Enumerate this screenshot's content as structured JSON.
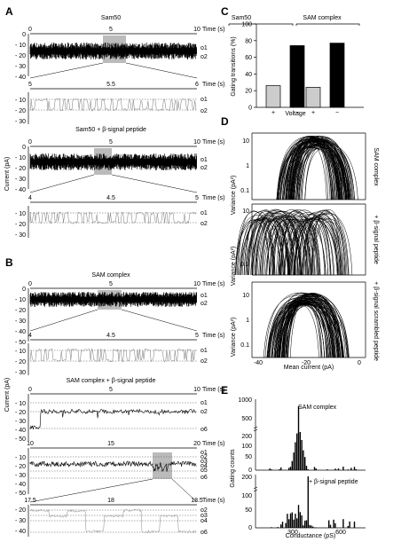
{
  "panels": {
    "A": "A",
    "B": "B",
    "C": "C",
    "D": "D",
    "E": "E"
  },
  "common": {
    "time_label": "Time (s)",
    "current_label": "Current (pA)",
    "states": {
      "o1": "o1",
      "o2": "o2",
      "o6": "o6",
      "o5": "o5",
      "o4": "o4",
      "o3": "o3"
    }
  },
  "panel_A": {
    "trace1": {
      "title": "Sam50",
      "x_ticks": [
        "0",
        "5",
        "10"
      ],
      "y_ticks": [
        "0",
        "- 10",
        "- 20",
        "- 30",
        "- 40"
      ]
    },
    "zoom1": {
      "x_ticks": [
        "5",
        "5.5",
        "6"
      ],
      "y_ticks": [
        "- 10",
        "- 20",
        "- 30"
      ]
    },
    "trace2": {
      "title": "Sam50 + β-signal peptide",
      "x_ticks": [
        "0",
        "5",
        "10"
      ],
      "y_ticks": [
        "0",
        "- 10",
        "- 20",
        "- 30",
        "- 40"
      ]
    },
    "zoom2": {
      "x_ticks": [
        "4",
        "4.5",
        "5"
      ],
      "y_ticks": [
        "- 10",
        "- 20",
        "- 30"
      ]
    }
  },
  "panel_B": {
    "trace1": {
      "title": "SAM complex",
      "x_ticks": [
        "0",
        "5",
        "10"
      ],
      "y_ticks": [
        "0",
        "- 10",
        "- 20",
        "- 30",
        "- 40",
        "- 50"
      ]
    },
    "zoom1": {
      "x_ticks": [
        "4",
        "4.5",
        "5"
      ],
      "y_ticks": [
        "- 10",
        "- 20",
        "- 30"
      ]
    },
    "trace2": {
      "title": "SAM complex + β-signal peptide",
      "x_ticks": [
        "0",
        "5",
        "10"
      ],
      "y_ticks": [
        "- 10",
        "- 20",
        "- 30",
        "- 40",
        "- 50"
      ]
    },
    "trace3": {
      "x_ticks": [
        "10",
        "15",
        "20"
      ],
      "y_ticks": [
        "- 10",
        "- 20",
        "- 30",
        "- 40",
        "- 50"
      ]
    },
    "zoom3": {
      "x_ticks": [
        "17.5",
        "18",
        "18.5"
      ],
      "y_ticks": [
        "- 20",
        "- 30",
        "- 40"
      ]
    }
  },
  "panel_D": {
    "ylabel": "Variance (pA²)",
    "xlabel": "Mean current (pA)",
    "x_ticks": [
      "-40",
      "-20",
      "0"
    ],
    "y_ticks": [
      "10",
      "1",
      "0.1"
    ],
    "row_labels": [
      "SAM complex",
      "+ β-signal peptide",
      "+ β-signal scrambled peptide"
    ]
  },
  "panel_E": {
    "ylabel": "Gating counts",
    "xlabel": "Conductance (pS)",
    "x_ticks": [
      "300",
      "600"
    ],
    "top_label": "SAM complex",
    "top_y_ticks": [
      "1000",
      "500",
      "200",
      "100",
      "50",
      "0"
    ],
    "bottom_label": "+ β-signal peptide",
    "bottom_y_ticks": [
      "200",
      "100",
      "50",
      "0"
    ]
  },
  "chart_data": [
    {
      "type": "bar",
      "title": "",
      "xlabel": "Voltage",
      "ylabel": "Gating transitions (%)",
      "ylim": [
        0,
        100
      ],
      "y_ticks": [
        0,
        20,
        40,
        60,
        80,
        100
      ],
      "groups": [
        "Sam50",
        "SAM complex"
      ],
      "categories": [
        "+",
        "−",
        "+",
        "−"
      ],
      "values": [
        26,
        74,
        24,
        77
      ],
      "colors": [
        "#cccccc",
        "#000000",
        "#cccccc",
        "#000000"
      ]
    }
  ]
}
